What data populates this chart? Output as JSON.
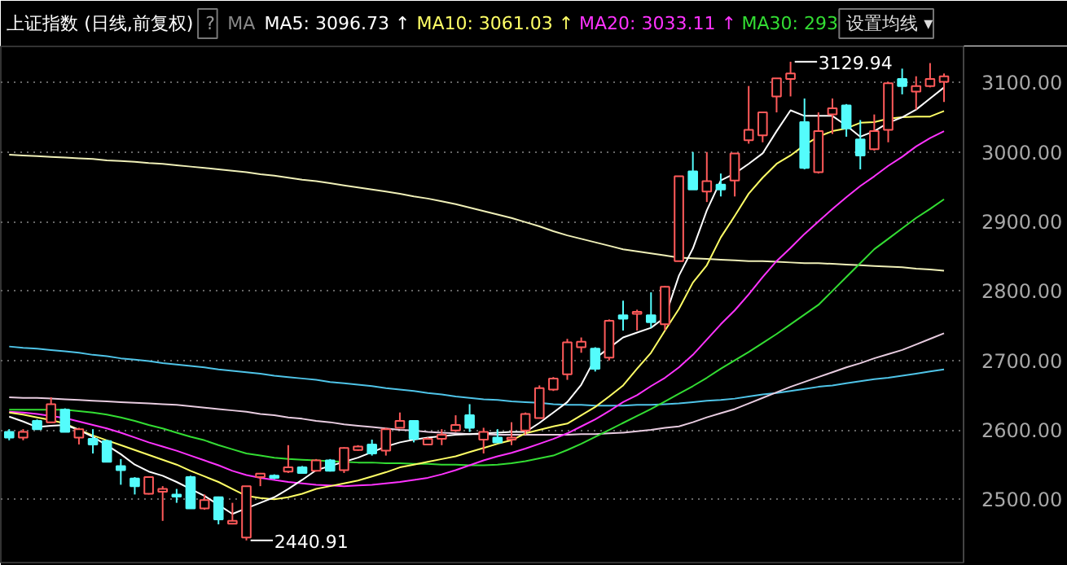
{
  "chart_data": {
    "type": "candlestick",
    "title": "上证指数 (日线,前复权)",
    "categories": [
      null,
      null,
      null,
      null,
      null,
      null,
      null,
      null,
      null,
      null,
      null,
      null,
      null,
      null,
      null,
      null,
      null,
      null,
      null,
      null,
      null,
      null,
      null,
      null,
      null,
      null,
      null,
      null,
      null,
      null,
      null,
      null,
      null,
      null,
      null,
      null,
      null,
      null,
      null,
      null,
      null,
      null,
      null,
      null,
      null,
      null,
      null,
      null,
      null,
      null,
      null,
      null,
      null,
      null,
      null,
      null,
      null,
      null,
      null,
      null,
      null,
      null,
      null,
      null,
      null,
      null,
      null,
      null
    ],
    "ohlc": [
      [
        2597,
        2601,
        2585,
        2589
      ],
      [
        2589,
        2601,
        2585,
        2597
      ],
      [
        2613,
        2615,
        2600,
        2601
      ],
      [
        2611,
        2647,
        2611,
        2637
      ],
      [
        2629,
        2631,
        2597,
        2597
      ],
      [
        2589,
        2603,
        2579,
        2601
      ],
      [
        2587,
        2601,
        2566,
        2579
      ],
      [
        2584,
        2586,
        2554,
        2554
      ],
      [
        2548,
        2558,
        2521,
        2542
      ],
      [
        2530,
        2532,
        2507,
        2519
      ],
      [
        2508,
        2532,
        2507,
        2532
      ],
      [
        2511,
        2519,
        2469,
        2515
      ],
      [
        2507,
        2515,
        2495,
        2504
      ],
      [
        2532,
        2534,
        2487,
        2487
      ],
      [
        2487,
        2507,
        2485,
        2499
      ],
      [
        2503,
        2504,
        2464,
        2471
      ],
      [
        2465,
        2495,
        2464,
        2469
      ],
      [
        2445,
        2519,
        2440.91,
        2519
      ],
      [
        2532,
        2538,
        2519,
        2537
      ],
      [
        2534,
        2536,
        2529,
        2531
      ],
      [
        2540,
        2578,
        2538,
        2546
      ],
      [
        2546,
        2548,
        2537,
        2538
      ],
      [
        2541,
        2558,
        2540,
        2556
      ],
      [
        2556,
        2558,
        2540,
        2541
      ],
      [
        2542,
        2575,
        2538,
        2574
      ],
      [
        2571,
        2578,
        2570,
        2576
      ],
      [
        2579,
        2586,
        2563,
        2566
      ],
      [
        2570,
        2603,
        2563,
        2601
      ],
      [
        2603,
        2625,
        2603,
        2613
      ],
      [
        2613,
        2613,
        2582,
        2587
      ],
      [
        2579,
        2589,
        2578,
        2587
      ],
      [
        2587,
        2601,
        2578,
        2593
      ],
      [
        2599,
        2621,
        2597,
        2607
      ],
      [
        2621,
        2637,
        2597,
        2603
      ],
      [
        2586,
        2603,
        2566,
        2597
      ],
      [
        2589,
        2601,
        2582,
        2582
      ],
      [
        2586,
        2611,
        2578,
        2589
      ],
      [
        2599,
        2625,
        2593,
        2623
      ],
      [
        2617,
        2664,
        2617,
        2660
      ],
      [
        2658,
        2676,
        2656,
        2674
      ],
      [
        2680,
        2731,
        2672,
        2726
      ],
      [
        2719,
        2733,
        2711,
        2727
      ],
      [
        2717,
        2719,
        2684,
        2688
      ],
      [
        2704,
        2759,
        2700,
        2757
      ],
      [
        2765,
        2786,
        2743,
        2760
      ],
      [
        2767,
        2773,
        2743,
        2770
      ],
      [
        2765,
        2798,
        2747,
        2755
      ],
      [
        2752,
        2807,
        2743,
        2806
      ],
      [
        2843,
        2965,
        2843,
        2965
      ],
      [
        2972,
        3000,
        2946,
        2946
      ],
      [
        2943,
        3000,
        2928,
        2958
      ],
      [
        2953,
        2969,
        2936,
        2946
      ],
      [
        2959,
        2998,
        2936,
        2998
      ],
      [
        3017,
        3095,
        3012,
        3032
      ],
      [
        3024,
        3057,
        3014,
        3057
      ],
      [
        3080,
        3106,
        3057,
        3106
      ],
      [
        3105,
        3129.94,
        3080,
        3113
      ],
      [
        3043,
        3077,
        2975,
        2977
      ],
      [
        2971,
        3057,
        2969,
        3030
      ],
      [
        3054,
        3077,
        3026,
        3063
      ],
      [
        3067,
        3069,
        3022,
        3034
      ],
      [
        3018,
        3046,
        2975,
        2995
      ],
      [
        3004,
        3054,
        3002,
        3030
      ],
      [
        3032,
        3101,
        3014,
        3099
      ],
      [
        3105,
        3120,
        3083,
        3095
      ],
      [
        3087,
        3109,
        3061,
        3095
      ],
      [
        3095,
        3128,
        3093,
        3105
      ],
      [
        3101,
        3113,
        3072,
        3109
      ]
    ],
    "colors": [
      "#54fcfc",
      "#ff5a5a",
      "#54fcfc",
      "#ff5a5a",
      "#54fcfc",
      "#ff5a5a",
      "#54fcfc",
      "#54fcfc",
      "#54fcfc",
      "#54fcfc",
      "#ff5a5a",
      "#ff5a5a",
      "#54fcfc",
      "#54fcfc",
      "#ff5a5a",
      "#54fcfc",
      "#ff5a5a",
      "#ff5a5a",
      "#ff5a5a",
      "#54fcfc",
      "#ff5a5a",
      "#54fcfc",
      "#ff5a5a",
      "#54fcfc",
      "#ff5a5a",
      "#ff5a5a",
      "#54fcfc",
      "#ff5a5a",
      "#ff5a5a",
      "#54fcfc",
      "#ff5a5a",
      "#ff5a5a",
      "#ff5a5a",
      "#54fcfc",
      "#ff5a5a",
      "#54fcfc",
      "#ff5a5a",
      "#ff5a5a",
      "#ff5a5a",
      "#ff5a5a",
      "#ff5a5a",
      "#ff5a5a",
      "#54fcfc",
      "#ff5a5a",
      "#54fcfc",
      "#ff5a5a",
      "#54fcfc",
      "#ff5a5a",
      "#ff5a5a",
      "#54fcfc",
      "#ff5a5a",
      "#54fcfc",
      "#ff5a5a",
      "#ff5a5a",
      "#ff5a5a",
      "#ff5a5a",
      "#ff5a5a",
      "#54fcfc",
      "#ff5a5a",
      "#ff5a5a",
      "#54fcfc",
      "#54fcfc",
      "#ff5a5a",
      "#ff5a5a",
      "#54fcfc",
      "#ff5a5a",
      "#ff5a5a",
      "#ff5a5a"
    ],
    "series": [
      {
        "type": "line",
        "color": "#f0f0b8",
        "values": [
          2996,
          2995,
          2994,
          2993,
          2992,
          2991,
          2990,
          2988,
          2987,
          2986,
          2984,
          2983,
          2981,
          2979,
          2977,
          2975,
          2973,
          2971,
          2968,
          2966,
          2963,
          2960,
          2958,
          2955,
          2952,
          2949,
          2946,
          2943,
          2940,
          2936,
          2933,
          2929,
          2925,
          2920,
          2915,
          2910,
          2905,
          2899,
          2893,
          2886,
          2880,
          2875,
          2870,
          2865,
          2860,
          2857,
          2854,
          2851,
          2848,
          2847,
          2846,
          2845,
          2844,
          2843,
          2843,
          2842,
          2841,
          2840,
          2840,
          2839,
          2838,
          2837,
          2836,
          2835,
          2834,
          2832,
          2831,
          2829
        ]
      },
      {
        "type": "line",
        "color": "#4fc4e8",
        "values": [
          2720,
          2718,
          2717,
          2715,
          2713,
          2711,
          2708,
          2706,
          2703,
          2701,
          2699,
          2696,
          2694,
          2692,
          2690,
          2687,
          2685,
          2683,
          2681,
          2678,
          2676,
          2674,
          2672,
          2669,
          2667,
          2665,
          2663,
          2660,
          2658,
          2656,
          2653,
          2651,
          2648,
          2646,
          2644,
          2643,
          2641,
          2640,
          2639,
          2637,
          2636,
          2636,
          2635,
          2635,
          2635,
          2636,
          2636,
          2637,
          2638,
          2640,
          2642,
          2643,
          2645,
          2648,
          2651,
          2653,
          2656,
          2659,
          2662,
          2664,
          2667,
          2670,
          2673,
          2675,
          2678,
          2681,
          2684,
          2687
        ]
      },
      {
        "type": "line",
        "color": "#e8cce0",
        "values": [
          2647,
          2646,
          2646,
          2645,
          2644,
          2643,
          2642,
          2641,
          2640,
          2639,
          2638,
          2637,
          2636,
          2634,
          2632,
          2630,
          2628,
          2626,
          2623,
          2621,
          2618,
          2616,
          2613,
          2611,
          2608,
          2606,
          2604,
          2602,
          2600,
          2599,
          2597,
          2596,
          2595,
          2594,
          2594,
          2593,
          2593,
          2593,
          2593,
          2593,
          2593,
          2594,
          2594,
          2595,
          2596,
          2598,
          2600,
          2603,
          2605,
          2611,
          2618,
          2624,
          2630,
          2638,
          2646,
          2654,
          2662,
          2669,
          2676,
          2683,
          2690,
          2696,
          2703,
          2709,
          2715,
          2723,
          2731,
          2739
        ]
      },
      {
        "type": "line",
        "name": "MA30: 293",
        "color": "#33dd33",
        "values": [
          2629,
          2629,
          2629,
          2629,
          2629,
          2627,
          2625,
          2622,
          2618,
          2613,
          2607,
          2602,
          2596,
          2590,
          2585,
          2578,
          2572,
          2566,
          2563,
          2560,
          2558,
          2557,
          2556,
          2555,
          2554,
          2553,
          2553,
          2552,
          2552,
          2551,
          2551,
          2550,
          2550,
          2549,
          2549,
          2550,
          2552,
          2555,
          2559,
          2563,
          2571,
          2580,
          2590,
          2600,
          2610,
          2620,
          2630,
          2641,
          2652,
          2663,
          2675,
          2688,
          2700,
          2712,
          2725,
          2738,
          2752,
          2766,
          2780,
          2800,
          2820,
          2840,
          2860,
          2875,
          2890,
          2905,
          2918,
          2932
        ]
      },
      {
        "type": "line",
        "name": "MA20: 3033.11 ↑",
        "color": "#ff33ff",
        "values": [
          2626,
          2625,
          2623,
          2620,
          2617,
          2612,
          2607,
          2602,
          2596,
          2589,
          2582,
          2576,
          2570,
          2563,
          2556,
          2549,
          2541,
          2535,
          2531,
          2528,
          2525,
          2523,
          2521,
          2520,
          2519,
          2520,
          2521,
          2523,
          2525,
          2528,
          2531,
          2536,
          2542,
          2549,
          2556,
          2562,
          2567,
          2573,
          2580,
          2587,
          2595,
          2605,
          2615,
          2627,
          2640,
          2650,
          2663,
          2675,
          2690,
          2708,
          2730,
          2752,
          2772,
          2795,
          2820,
          2843,
          2862,
          2882,
          2900,
          2918,
          2935,
          2951,
          2965,
          2980,
          2993,
          3008,
          3020,
          3030
        ]
      },
      {
        "type": "line",
        "name": "MA10: 3061.03 ↑",
        "color": "#ffff66",
        "values": [
          2625,
          2622,
          2618,
          2614,
          2609,
          2600,
          2592,
          2585,
          2578,
          2571,
          2564,
          2557,
          2550,
          2541,
          2533,
          2525,
          2515,
          2505,
          2502,
          2500,
          2503,
          2508,
          2515,
          2519,
          2523,
          2527,
          2533,
          2539,
          2546,
          2550,
          2554,
          2558,
          2562,
          2568,
          2574,
          2580,
          2585,
          2595,
          2600,
          2605,
          2609,
          2621,
          2633,
          2648,
          2664,
          2688,
          2711,
          2743,
          2774,
          2812,
          2837,
          2877,
          2908,
          2940,
          2963,
          2983,
          2995,
          3010,
          3022,
          3030,
          3034,
          3042,
          3043,
          3048,
          3050,
          3051,
          3051,
          3059
        ]
      },
      {
        "type": "line",
        "name": "MA5: 3096.73 ↑",
        "color": "#ffffff",
        "values": [
          2619,
          2612,
          2604,
          2606,
          2607,
          2600,
          2590,
          2578,
          2565,
          2550,
          2540,
          2534,
          2525,
          2515,
          2505,
          2492,
          2479,
          2487,
          2495,
          2503,
          2515,
          2528,
          2542,
          2548,
          2554,
          2560,
          2568,
          2576,
          2582,
          2586,
          2589,
          2591,
          2593,
          2594,
          2595,
          2596,
          2597,
          2597,
          2610,
          2625,
          2640,
          2665,
          2703,
          2718,
          2733,
          2740,
          2747,
          2762,
          2822,
          2861,
          2916,
          2959,
          2969,
          2983,
          2998,
          3030,
          3060,
          3052,
          3052,
          3052,
          3038,
          3022,
          3030,
          3042,
          3050,
          3061,
          3077,
          3093
        ]
      }
    ],
    "ylim": [
      2409,
      3152
    ],
    "yticks": [
      {
        "value": 2500,
        "label": "2500.00"
      },
      {
        "value": 2600,
        "label": "2600.00"
      },
      {
        "value": 2700,
        "label": "2700.00"
      },
      {
        "value": 2800,
        "label": "2800.00"
      },
      {
        "value": 2900,
        "label": "2900.00"
      },
      {
        "value": 3000,
        "label": "3000.00"
      },
      {
        "value": 3100,
        "label": "3100.00"
      }
    ],
    "grid": "y",
    "legend": "top",
    "tick_labels": "y",
    "annotations": [
      "?",
      "MA",
      "设置均线 ▾",
      "3129.94",
      "2440.91"
    ]
  }
}
